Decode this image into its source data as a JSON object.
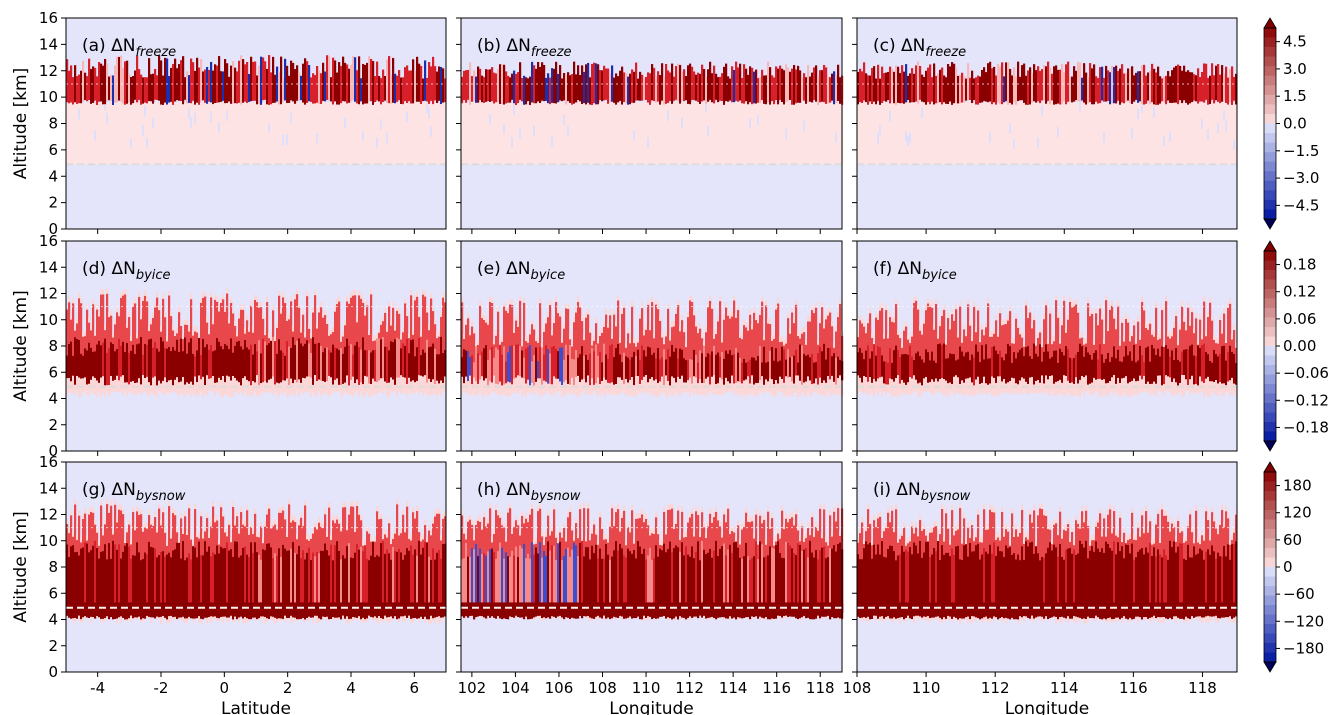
{
  "figure": {
    "panels": [
      {
        "label": "(a) ΔN",
        "sub": "freeze"
      },
      {
        "label": "(b) ΔN",
        "sub": "freeze"
      },
      {
        "label": "(c) ΔN",
        "sub": "freeze"
      },
      {
        "label": "(d) ΔN",
        "sub": "byice"
      },
      {
        "label": "(e) ΔN",
        "sub": "byice"
      },
      {
        "label": "(f) ΔN",
        "sub": "byice"
      },
      {
        "label": "(g) ΔN",
        "sub": "bysnow"
      },
      {
        "label": "(h) ΔN",
        "sub": "bysnow"
      },
      {
        "label": "(i) ΔN",
        "sub": "bysnow"
      }
    ]
  },
  "chart_data": [
    {
      "type": "heatmap",
      "columns": [
        {
          "xlabel": "Latitude",
          "xlim": [
            -5,
            7
          ],
          "xticks": [
            -4,
            -2,
            0,
            2,
            4,
            6
          ]
        },
        {
          "xlabel": "Longitude",
          "xlim": [
            101.5,
            119
          ],
          "xticks": [
            102,
            104,
            106,
            108,
            110,
            112,
            114,
            116,
            118
          ]
        },
        {
          "xlabel": "Longitude",
          "xlim": [
            108,
            119
          ],
          "xticks": [
            108,
            110,
            112,
            114,
            116,
            118
          ]
        }
      ],
      "ylabel": "Altitude [km]",
      "ylim": [
        0,
        16
      ],
      "yticks": [
        0,
        2,
        4,
        6,
        8,
        10,
        12,
        14,
        16
      ],
      "reference_lines": [
        {
          "row": 0,
          "altitudes_km": [
            4.9,
            11.0
          ]
        },
        {
          "row": 1,
          "altitudes_km": [
            4.9,
            11.0
          ]
        },
        {
          "row": 2,
          "altitudes_km": [
            4.9,
            11.0
          ]
        }
      ],
      "rows": [
        {
          "variable": "ΔN freeze",
          "colorbar_ticks": [
            "4.5",
            "3.0",
            "1.5",
            "0.0",
            "−1.5",
            "−3.0",
            "−4.5"
          ],
          "clim": [
            -5.4,
            5.4
          ],
          "field_base_km": [
            4.9,
            4.9,
            4.9
          ],
          "field_top_km": [
            13.0,
            12.5,
            12.5
          ],
          "core_km": [
            [
              9.8,
              12.0
            ],
            [
              9.8,
              12.0
            ],
            [
              9.8,
              12.0
            ]
          ]
        },
        {
          "variable": "ΔN byice",
          "colorbar_ticks": [
            "0.18",
            "0.12",
            "0.06",
            "0.00",
            "−0.06",
            "−0.12",
            "−0.18"
          ],
          "clim": [
            -0.216,
            0.216
          ],
          "field_base_km": [
            4.4,
            4.4,
            4.4
          ],
          "field_top_km": [
            12.0,
            11.5,
            11.5
          ],
          "core_km": [
            [
              5.0,
              9.5
            ],
            [
              5.0,
              9.0
            ],
            [
              5.0,
              9.0
            ]
          ]
        },
        {
          "variable": "ΔN bysnow",
          "colorbar_ticks": [
            "180",
            "120",
            "60",
            "0",
            "−60",
            "−120",
            "−180"
          ],
          "clim": [
            -216,
            216
          ],
          "field_base_km": [
            4.0,
            4.2,
            4.0
          ],
          "field_top_km": [
            12.8,
            12.5,
            12.5
          ],
          "core_km": [
            [
              4.4,
              10.8
            ],
            [
              4.4,
              10.8
            ],
            [
              4.4,
              10.8
            ]
          ]
        }
      ],
      "colors": {
        "background": "#e4e4fa",
        "strong_positive": "#800000",
        "strong_negative": "#00005a"
      }
    }
  ]
}
